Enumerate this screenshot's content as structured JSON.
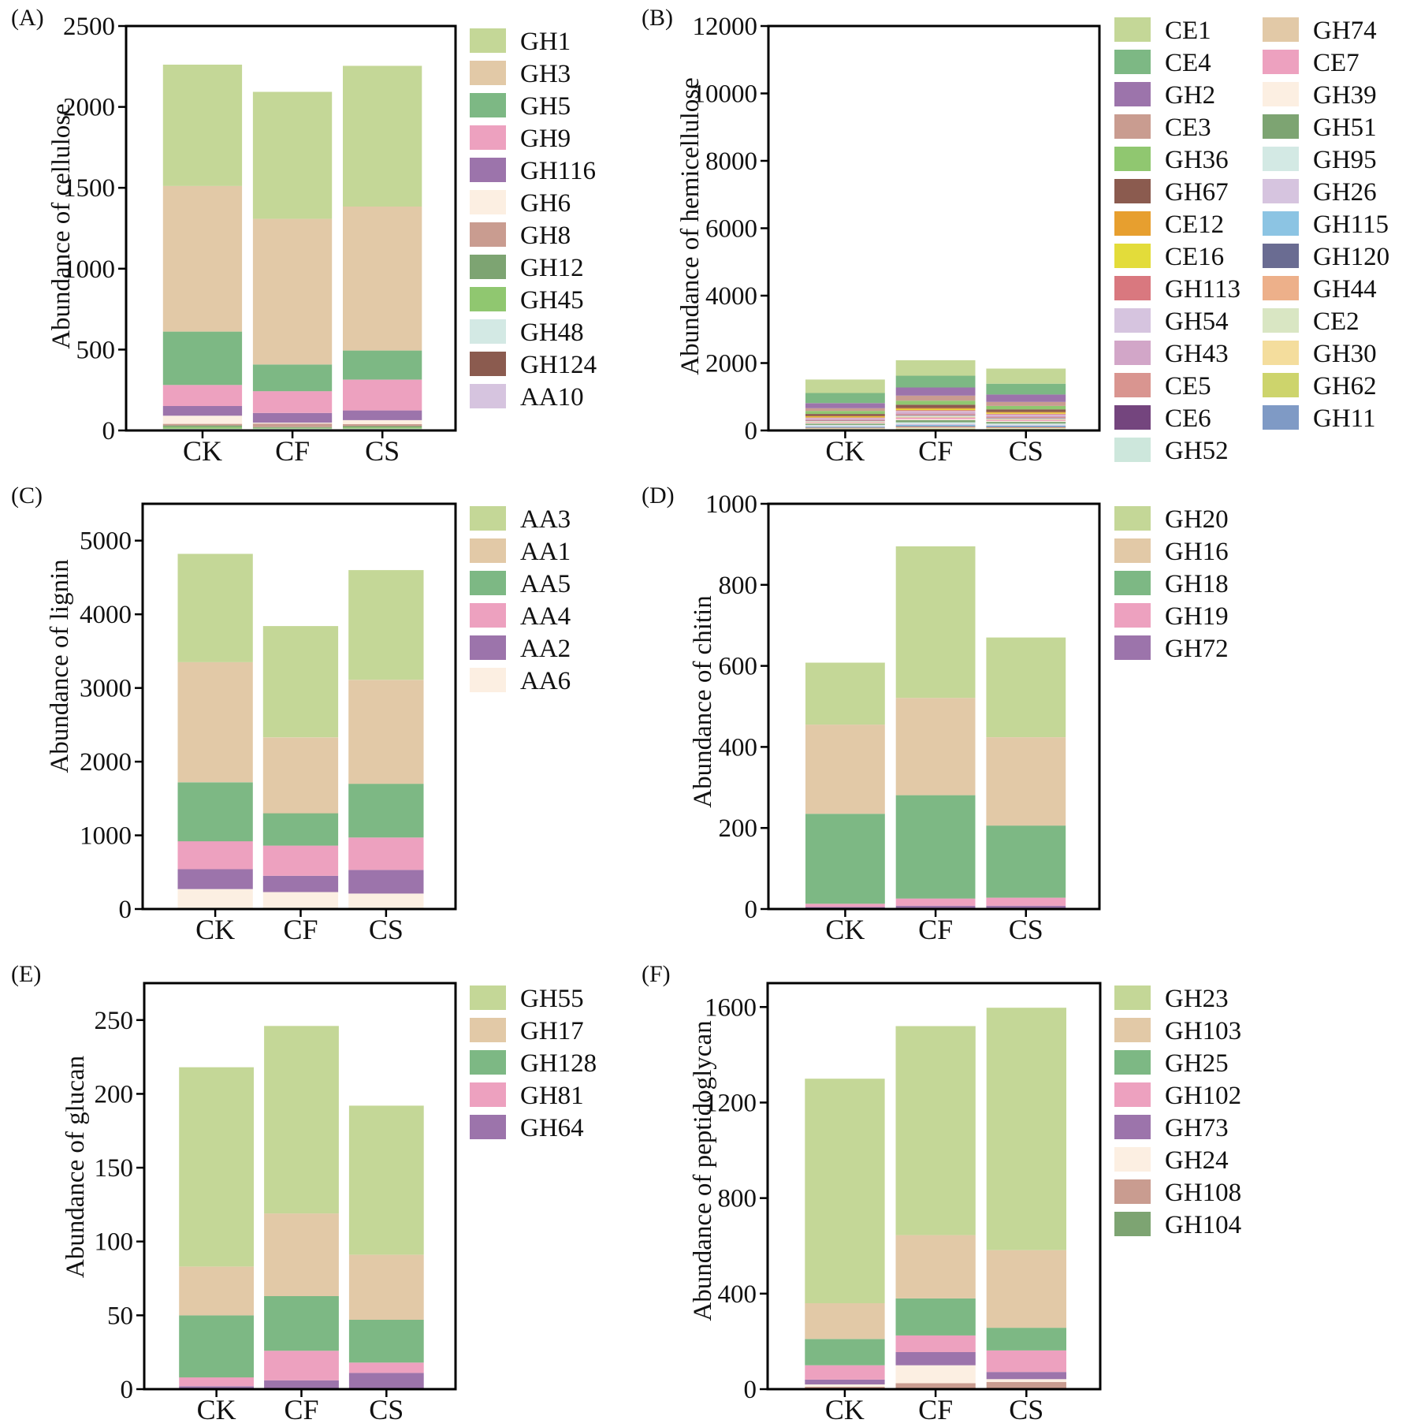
{
  "colors": {
    "GH1": "#c4d797",
    "GH3": "#e2c9a7",
    "GH5": "#7db884",
    "GH9": "#eda1bf",
    "GH116": "#9c74ab",
    "GH6": "#fcefe2",
    "GH8": "#c99c90",
    "GH12": "#7da472",
    "GH45": "#90c770",
    "GH48": "#d3e9e4",
    "GH124": "#8b5b4f",
    "AA10": "#d6c4df",
    "CE1": "#c4d797",
    "CE4": "#7db884",
    "GH2": "#9c74ab",
    "CE3": "#c99c90",
    "GH36": "#90c770",
    "GH67": "#8b5b4f",
    "CE12": "#e79f2f",
    "CE16": "#e3dc3a",
    "GH113": "#d9787f",
    "GH54": "#d6c4df",
    "GH43": "#d2a6c8",
    "CE5": "#d99590",
    "CE6": "#74457e",
    "GH52": "#cde7dc",
    "GH74": "#e2c9a7",
    "CE7": "#eda1bf",
    "GH39": "#fcefe2",
    "GH51": "#7da472",
    "GH95": "#d3e9e4",
    "GH26": "#d6c4df",
    "GH115": "#8cc4e3",
    "GH120": "#6a6c92",
    "GH44": "#edb08a",
    "CE2": "#d9e6c3",
    "GH30": "#f4dd9d",
    "GH62": "#cdd46c",
    "GH11": "#7f9ac5",
    "AA3": "#c4d797",
    "AA1": "#e2c9a7",
    "AA5": "#7db884",
    "AA4": "#eda1bf",
    "AA2": "#9c74ab",
    "AA6": "#fcefe2",
    "GH20": "#c4d797",
    "GH16": "#e2c9a7",
    "GH18": "#7db884",
    "GH19": "#eda1bf",
    "GH72": "#9c74ab",
    "GH55": "#c4d797",
    "GH17": "#e2c9a7",
    "GH128": "#7db884",
    "GH81": "#eda1bf",
    "GH64": "#9c74ab",
    "GH23": "#c4d797",
    "GH103": "#e2c9a7",
    "GH25": "#7db884",
    "GH102": "#eda1bf",
    "GH73": "#9c74ab",
    "GH24": "#fcefe2",
    "GH108": "#c99c90",
    "GH104": "#7da472"
  },
  "chart_data": [
    {
      "panel": "(A)",
      "type": "bar",
      "stacked": true,
      "ylabel": "Abundance of cellulose",
      "ylim": [
        0,
        2500
      ],
      "yticks": [
        "0",
        "500",
        "1000",
        "1500",
        "2000",
        "2500"
      ],
      "categories": [
        "CK",
        "CF",
        "CS"
      ],
      "series": [
        {
          "name": "AA10",
          "values": [
            3,
            3,
            3
          ]
        },
        {
          "name": "GH124",
          "values": [
            3,
            3,
            3
          ]
        },
        {
          "name": "GH48",
          "values": [
            5,
            5,
            5
          ]
        },
        {
          "name": "GH45",
          "values": [
            10,
            5,
            8
          ]
        },
        {
          "name": "GH12",
          "values": [
            10,
            5,
            8
          ]
        },
        {
          "name": "GH8",
          "values": [
            10,
            22,
            12
          ]
        },
        {
          "name": "GH6",
          "values": [
            50,
            5,
            25
          ]
        },
        {
          "name": "GH116",
          "values": [
            60,
            60,
            60
          ]
        },
        {
          "name": "GH9",
          "values": [
            130,
            135,
            190
          ]
        },
        {
          "name": "GH5",
          "values": [
            330,
            165,
            180
          ]
        },
        {
          "name": "GH3",
          "values": [
            900,
            900,
            890
          ]
        },
        {
          "name": "GH1",
          "values": [
            750,
            785,
            870
          ]
        }
      ],
      "legend": [
        "GH1",
        "GH3",
        "GH5",
        "GH9",
        "GH116",
        "GH6",
        "GH8",
        "GH12",
        "GH45",
        "GH48",
        "GH124",
        "AA10"
      ]
    },
    {
      "panel": "(B)",
      "type": "bar",
      "stacked": true,
      "ylabel": "Abundance of hemicellulose",
      "ylim": [
        0,
        12000
      ],
      "yticks": [
        "0",
        "2000",
        "4000",
        "6000",
        "8000",
        "10000",
        "12000"
      ],
      "categories": [
        "CK",
        "CF",
        "CS"
      ],
      "series": [
        {
          "name": "GH11",
          "values": [
            10,
            10,
            10
          ]
        },
        {
          "name": "GH62",
          "values": [
            10,
            10,
            10
          ]
        },
        {
          "name": "GH30",
          "values": [
            20,
            30,
            25
          ]
        },
        {
          "name": "CE2",
          "values": [
            20,
            30,
            25
          ]
        },
        {
          "name": "GH44",
          "values": [
            20,
            30,
            25
          ]
        },
        {
          "name": "GH120",
          "values": [
            15,
            25,
            20
          ]
        },
        {
          "name": "GH115",
          "values": [
            20,
            30,
            25
          ]
        },
        {
          "name": "GH26",
          "values": [
            20,
            30,
            25
          ]
        },
        {
          "name": "GH95",
          "values": [
            30,
            50,
            40
          ]
        },
        {
          "name": "GH51",
          "values": [
            40,
            60,
            50
          ]
        },
        {
          "name": "GH39",
          "values": [
            20,
            30,
            25
          ]
        },
        {
          "name": "CE7",
          "values": [
            20,
            40,
            30
          ]
        },
        {
          "name": "GH74",
          "values": [
            20,
            40,
            30
          ]
        },
        {
          "name": "GH52",
          "values": [
            15,
            25,
            20
          ]
        },
        {
          "name": "CE6",
          "values": [
            10,
            15,
            12
          ]
        },
        {
          "name": "CE5",
          "values": [
            20,
            30,
            25
          ]
        },
        {
          "name": "GH43",
          "values": [
            40,
            60,
            50
          ]
        },
        {
          "name": "GH54",
          "values": [
            20,
            30,
            25
          ]
        },
        {
          "name": "GH113",
          "values": [
            20,
            30,
            25
          ]
        },
        {
          "name": "CE16",
          "values": [
            20,
            30,
            25
          ]
        },
        {
          "name": "CE12",
          "values": [
            20,
            30,
            25
          ]
        },
        {
          "name": "GH67",
          "values": [
            60,
            100,
            80
          ]
        },
        {
          "name": "GH36",
          "values": [
            90,
            120,
            100
          ]
        },
        {
          "name": "CE3",
          "values": [
            80,
            150,
            120
          ]
        },
        {
          "name": "GH2",
          "values": [
            150,
            240,
            220
          ]
        },
        {
          "name": "CE4",
          "values": [
            300,
            350,
            320
          ]
        },
        {
          "name": "CE1",
          "values": [
            400,
            460,
            450
          ]
        }
      ],
      "legend": [
        "CE1",
        "CE4",
        "GH2",
        "CE3",
        "GH36",
        "GH67",
        "CE12",
        "CE16",
        "GH113",
        "GH54",
        "GH43",
        "CE5",
        "CE6",
        "GH52",
        "GH74",
        "CE7",
        "GH39",
        "GH51",
        "GH95",
        "GH26",
        "GH115",
        "GH120",
        "GH44",
        "CE2",
        "GH30",
        "GH62",
        "GH11"
      ]
    },
    {
      "panel": "(C)",
      "type": "bar",
      "stacked": true,
      "ylabel": "Abundance of lignin",
      "ylim": [
        0,
        5500
      ],
      "yticks": [
        "0",
        "1000",
        "2000",
        "3000",
        "4000",
        "5000"
      ],
      "categories": [
        "CK",
        "CF",
        "CS"
      ],
      "series": [
        {
          "name": "AA6",
          "values": [
            270,
            230,
            210
          ]
        },
        {
          "name": "AA2",
          "values": [
            270,
            220,
            320
          ]
        },
        {
          "name": "AA4",
          "values": [
            380,
            410,
            440
          ]
        },
        {
          "name": "AA5",
          "values": [
            800,
            440,
            730
          ]
        },
        {
          "name": "AA1",
          "values": [
            1630,
            1030,
            1410
          ]
        },
        {
          "name": "AA3",
          "values": [
            1470,
            1510,
            1490
          ]
        }
      ],
      "legend": [
        "AA3",
        "AA1",
        "AA5",
        "AA4",
        "AA2",
        "AA6"
      ]
    },
    {
      "panel": "(D)",
      "type": "bar",
      "stacked": true,
      "ylabel": "Abundance of chitin",
      "ylim": [
        0,
        1000
      ],
      "yticks": [
        "0",
        "200",
        "400",
        "600",
        "800",
        "1000"
      ],
      "categories": [
        "CK",
        "CF",
        "CS"
      ],
      "series": [
        {
          "name": "GH72",
          "values": [
            5,
            8,
            8
          ]
        },
        {
          "name": "GH19",
          "values": [
            8,
            18,
            20
          ]
        },
        {
          "name": "GH18",
          "values": [
            222,
            255,
            178
          ]
        },
        {
          "name": "GH16",
          "values": [
            220,
            240,
            218
          ]
        },
        {
          "name": "GH20",
          "values": [
            153,
            374,
            246
          ]
        }
      ],
      "legend": [
        "GH20",
        "GH16",
        "GH18",
        "GH19",
        "GH72"
      ]
    },
    {
      "panel": "(E)",
      "type": "bar",
      "stacked": true,
      "ylabel": "Abundance of glucan",
      "ylim": [
        0,
        275
      ],
      "yticks": [
        "0",
        "50",
        "100",
        "150",
        "200",
        "250"
      ],
      "categories": [
        "CK",
        "CF",
        "CS"
      ],
      "series": [
        {
          "name": "GH64",
          "values": [
            2,
            6,
            11
          ]
        },
        {
          "name": "GH81",
          "values": [
            6,
            20,
            7
          ]
        },
        {
          "name": "GH128",
          "values": [
            42,
            37,
            29
          ]
        },
        {
          "name": "GH17",
          "values": [
            33,
            56,
            44
          ]
        },
        {
          "name": "GH55",
          "values": [
            135,
            127,
            101
          ]
        }
      ],
      "legend": [
        "GH55",
        "GH17",
        "GH128",
        "GH81",
        "GH64"
      ]
    },
    {
      "panel": "(F)",
      "type": "bar",
      "stacked": true,
      "ylabel": "Abundance of peptidoglycan",
      "ylim": [
        0,
        1700
      ],
      "yticks": [
        "0",
        "400",
        "800",
        "1200",
        "1600"
      ],
      "categories": [
        "CK",
        "CF",
        "CS"
      ],
      "series": [
        {
          "name": "GH104",
          "values": [
            5,
            5,
            5
          ]
        },
        {
          "name": "GH108",
          "values": [
            5,
            20,
            25
          ]
        },
        {
          "name": "GH24",
          "values": [
            10,
            75,
            12
          ]
        },
        {
          "name": "GH73",
          "values": [
            20,
            55,
            30
          ]
        },
        {
          "name": "GH102",
          "values": [
            60,
            70,
            90
          ]
        },
        {
          "name": "GH25",
          "values": [
            110,
            155,
            95
          ]
        },
        {
          "name": "GH103",
          "values": [
            150,
            265,
            325
          ]
        },
        {
          "name": "GH23",
          "values": [
            940,
            875,
            1015
          ]
        }
      ],
      "legend": [
        "GH23",
        "GH103",
        "GH25",
        "GH102",
        "GH73",
        "GH24",
        "GH108",
        "GH104"
      ]
    }
  ]
}
